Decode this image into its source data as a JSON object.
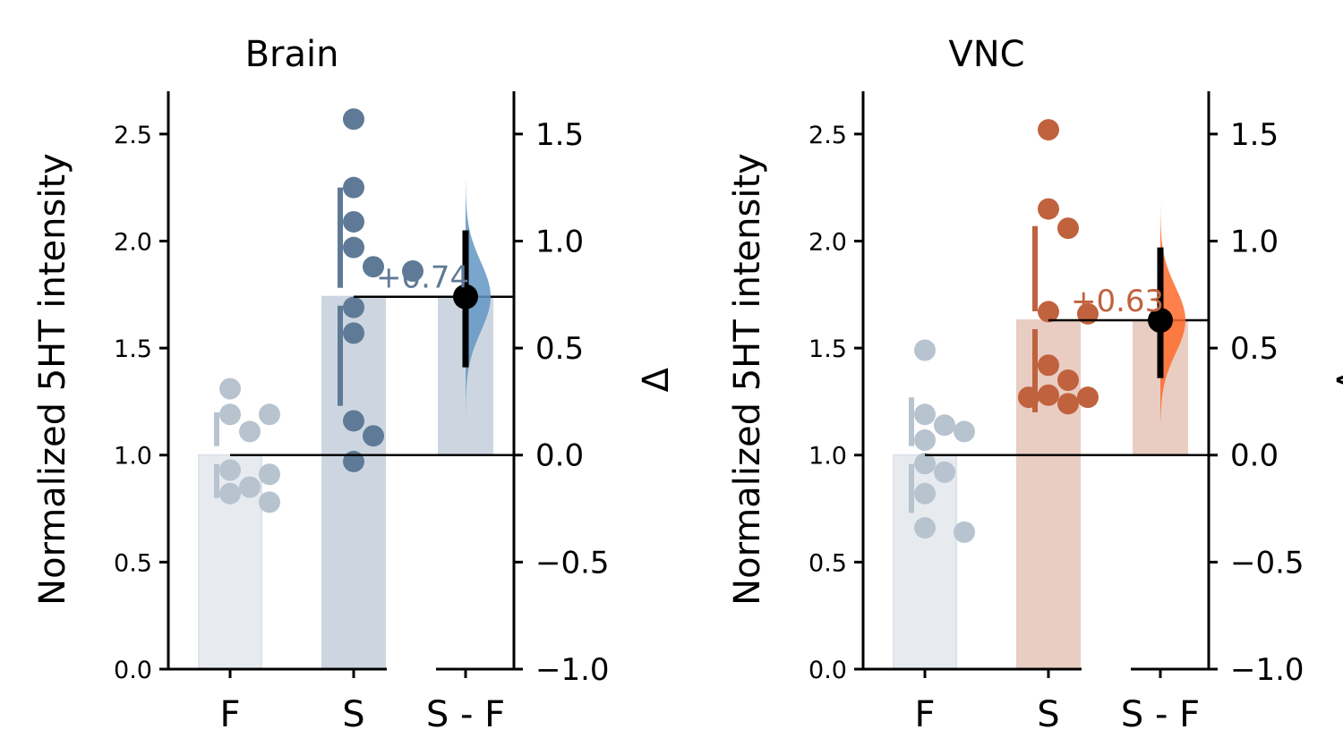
{
  "chart_data": [
    {
      "type": "estimation-plot",
      "title": "Brain",
      "ylabel": "Normalized 5HT intensity",
      "delta_label": "Δ",
      "categories": [
        "F",
        "S",
        "S - F"
      ],
      "ylim": [
        0,
        2.7
      ],
      "yticks": [
        "0.0",
        "0.5",
        "1.0",
        "1.5",
        "2.0",
        "2.5"
      ],
      "delta_lim": [
        -1.0,
        1.7
      ],
      "delta_ticks": [
        "−1.0",
        "−0.5",
        "0.0",
        "0.5",
        "1.0",
        "1.5"
      ],
      "colors": {
        "control": "#b7c3cf",
        "treat": "#5e7a96",
        "delta_fill": "#6396c4",
        "bar_treat": "#cdd6e0",
        "bar_control": "#e7ebf0",
        "bar_delta": "#cdd6e0"
      },
      "groups": [
        {
          "name": "F",
          "mean": 1.0,
          "err": [
            0.8,
            1.2
          ],
          "points": [
            1.31,
            1.19,
            1.19,
            1.11,
            0.93,
            0.91,
            0.85,
            0.82,
            0.78
          ]
        },
        {
          "name": "S",
          "mean": 1.74,
          "err": [
            1.23,
            2.25
          ],
          "points": [
            2.57,
            2.25,
            2.09,
            1.97,
            1.88,
            1.86,
            1.69,
            1.57,
            1.16,
            1.09,
            0.97
          ]
        }
      ],
      "delta": {
        "value": 0.74,
        "label": "+0.74",
        "ci": [
          0.41,
          1.05
        ],
        "dist_range": [
          0.15,
          1.28
        ]
      }
    },
    {
      "type": "estimation-plot",
      "title": "VNC",
      "ylabel": "Normalized 5HT intensity",
      "delta_label": "Δ",
      "categories": [
        "F",
        "S",
        "S - F"
      ],
      "ylim": [
        0,
        2.7
      ],
      "yticks": [
        "0.0",
        "0.5",
        "1.0",
        "1.5",
        "2.0",
        "2.5"
      ],
      "delta_lim": [
        -1.0,
        1.7
      ],
      "delta_ticks": [
        "−1.0",
        "−0.5",
        "0.0",
        "0.5",
        "1.0",
        "1.5"
      ],
      "colors": {
        "control": "#b7c3cf",
        "treat": "#c0623e",
        "delta_fill": "#ff6a2c",
        "bar_treat": "#e9cdc2",
        "bar_control": "#e7ebf0",
        "bar_delta": "#e9cdc2"
      },
      "groups": [
        {
          "name": "F",
          "mean": 1.0,
          "err": [
            0.73,
            1.27
          ],
          "points": [
            1.49,
            1.19,
            1.14,
            1.11,
            1.07,
            0.96,
            0.92,
            0.82,
            0.66,
            0.64
          ]
        },
        {
          "name": "S",
          "mean": 1.63,
          "err": [
            1.2,
            2.07
          ],
          "points": [
            2.52,
            2.15,
            2.06,
            1.67,
            1.66,
            1.42,
            1.35,
            1.28,
            1.27,
            1.27,
            1.24
          ]
        }
      ],
      "delta": {
        "value": 0.63,
        "label": "+0.63",
        "ci": [
          0.36,
          0.97
        ],
        "dist_range": [
          0.16,
          1.17
        ]
      }
    }
  ]
}
